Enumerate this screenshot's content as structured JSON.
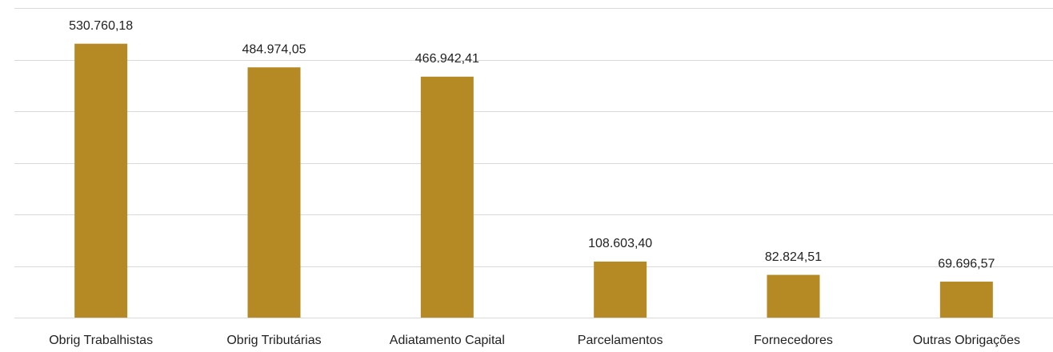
{
  "chart_data": {
    "type": "bar",
    "categories": [
      "Obrig Trabalhistas",
      "Obrig Tributárias",
      "Adiatamento Capital",
      "Parcelamentos",
      "Fornecedores",
      "Outras Obrigações"
    ],
    "values": [
      530760.18,
      484974.05,
      466942.41,
      108603.4,
      82824.51,
      69696.57
    ],
    "value_labels": [
      "530.760,18",
      "484.974,05",
      "466.942,41",
      "108.603,40",
      "82.824,51",
      "69.696,57"
    ],
    "color": "#b58a25",
    "ylim": [
      0,
      600000
    ],
    "yticks": [
      0,
      100000,
      200000,
      300000,
      400000,
      500000,
      600000
    ],
    "grid": true
  }
}
